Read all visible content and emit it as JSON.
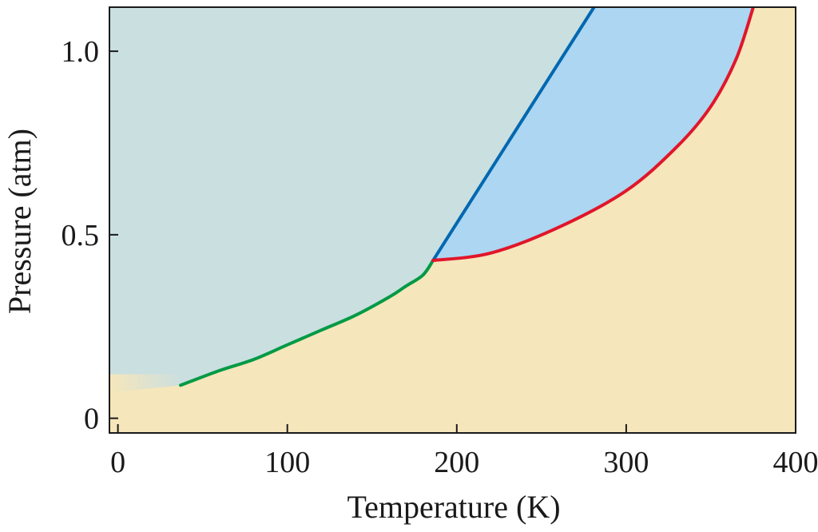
{
  "chart_data": {
    "type": "line",
    "title": "",
    "xlabel": "Temperature (K)",
    "ylabel": "Pressure (atm)",
    "xlim": [
      -5,
      400
    ],
    "ylim": [
      -0.04,
      1.12
    ],
    "x_ticks": [
      0,
      100,
      200,
      300,
      400
    ],
    "x_tick_labels": [
      "0",
      "100",
      "200",
      "300",
      "400"
    ],
    "y_ticks": [
      0,
      0.5,
      1.0
    ],
    "y_tick_labels": [
      "0",
      "0.5",
      "1.0"
    ],
    "grid": false,
    "legend": "none",
    "colors": {
      "upper_region": "#cadfe0",
      "lower_region": "#f6e6bb",
      "middle_region": "#acd6f1",
      "green_curve": "#009a45",
      "blue_line": "#0068b0",
      "red_curve": "#e0162b",
      "frame": "#1a1a1a"
    },
    "series": [
      {
        "color": "green",
        "x": [
          37,
          60,
          80,
          100,
          120,
          140,
          160,
          170,
          180,
          186
        ],
        "y": [
          0.09,
          0.13,
          0.16,
          0.2,
          0.24,
          0.28,
          0.33,
          0.36,
          0.39,
          0.43
        ]
      },
      {
        "color": "blue",
        "x": [
          186,
          281
        ],
        "y": [
          0.43,
          1.12
        ]
      },
      {
        "color": "red",
        "x": [
          186,
          220,
          260,
          300,
          330,
          350,
          365,
          375
        ],
        "y": [
          0.43,
          0.45,
          0.52,
          0.62,
          0.74,
          0.85,
          0.98,
          1.12
        ]
      }
    ]
  }
}
